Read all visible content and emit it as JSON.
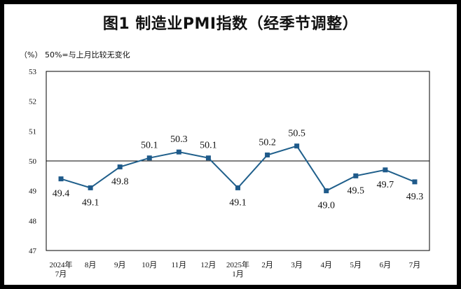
{
  "title": "图1  制造业PMI指数（经季节调整）",
  "unit_note": "（%）  50%=与上月比较无变化",
  "chart_data": {
    "type": "line",
    "title": "图1  制造业PMI指数（经季节调整）",
    "ylabel": "（%）",
    "note": "50%=与上月比较无变化",
    "categories": [
      [
        "2024年",
        "7月"
      ],
      [
        "8月"
      ],
      [
        "9月"
      ],
      [
        "10月"
      ],
      [
        "11月"
      ],
      [
        "12月"
      ],
      [
        "2025年",
        "1月"
      ],
      [
        "2月"
      ],
      [
        "3月"
      ],
      [
        "4月"
      ],
      [
        "5月"
      ],
      [
        "6月"
      ],
      [
        "7月"
      ]
    ],
    "series": [
      {
        "values": [
          49.4,
          49.1,
          49.8,
          50.1,
          50.3,
          50.1,
          49.1,
          50.2,
          50.5,
          49.0,
          49.5,
          49.7,
          49.3
        ]
      }
    ],
    "ylim": [
      47,
      53
    ],
    "yticks": [
      47,
      48,
      49,
      50,
      51,
      52,
      53
    ],
    "reference_line": 50,
    "grid": false,
    "line_color": "#1f5f8b",
    "marker_color": "#1f5a8a"
  }
}
